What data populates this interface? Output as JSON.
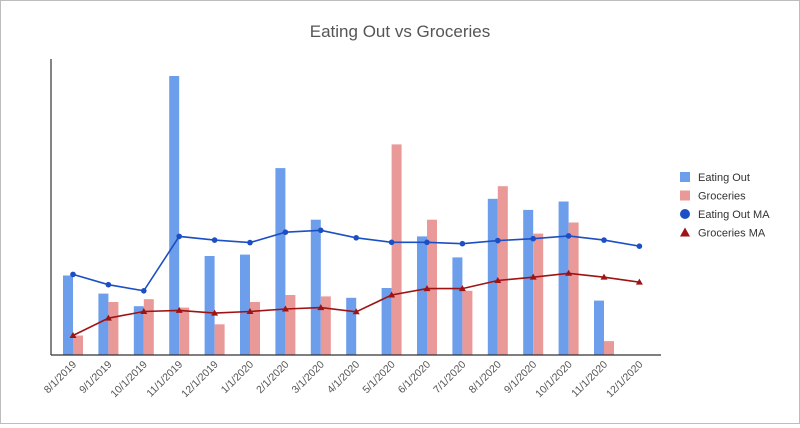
{
  "chart_data": {
    "type": "bar",
    "title": "Eating Out vs Groceries",
    "xlabel": "",
    "ylabel": "",
    "ylim": [
      0,
      100
    ],
    "grid": false,
    "legend_position": "right",
    "categories": [
      "8/1/2019",
      "9/1/2019",
      "10/1/2019",
      "11/1/2019",
      "12/1/2019",
      "1/1/2020",
      "2/1/2020",
      "3/1/2020",
      "4/1/2020",
      "5/1/2020",
      "6/1/2020",
      "7/1/2020",
      "8/1/2020",
      "9/1/2020",
      "10/1/2020",
      "11/1/2020",
      "12/1/2020"
    ],
    "series": [
      {
        "name": "Eating Out",
        "type": "bar",
        "color": "#6d9eeb",
        "values": [
          28.5,
          22,
          17.5,
          100,
          35.5,
          36,
          67,
          48.5,
          20.5,
          24,
          42.5,
          35,
          56,
          52,
          55,
          19.5,
          null
        ]
      },
      {
        "name": "Groceries",
        "type": "bar",
        "color": "#ea9999",
        "values": [
          7,
          19,
          20,
          17,
          11,
          19,
          21.5,
          21,
          null,
          75.5,
          48.5,
          23,
          60.5,
          43.5,
          47.5,
          5,
          null
        ]
      },
      {
        "name": "Eating Out MA",
        "type": "line",
        "marker": "circle",
        "color": "#1c4fc4",
        "values": [
          28.9,
          25.2,
          23,
          42.5,
          41.2,
          40.3,
          44,
          44.7,
          42,
          40.4,
          40.4,
          39.9,
          41,
          41.7,
          42.7,
          41.2,
          39
        ]
      },
      {
        "name": "Groceries MA",
        "type": "line",
        "marker": "triangle",
        "color": "#9e1414",
        "values": [
          7,
          13.2,
          15.6,
          16,
          15,
          15.6,
          16.5,
          17,
          15.5,
          21.5,
          23.8,
          23.8,
          26.7,
          27.9,
          29.3,
          27.9,
          26.1
        ]
      }
    ]
  }
}
